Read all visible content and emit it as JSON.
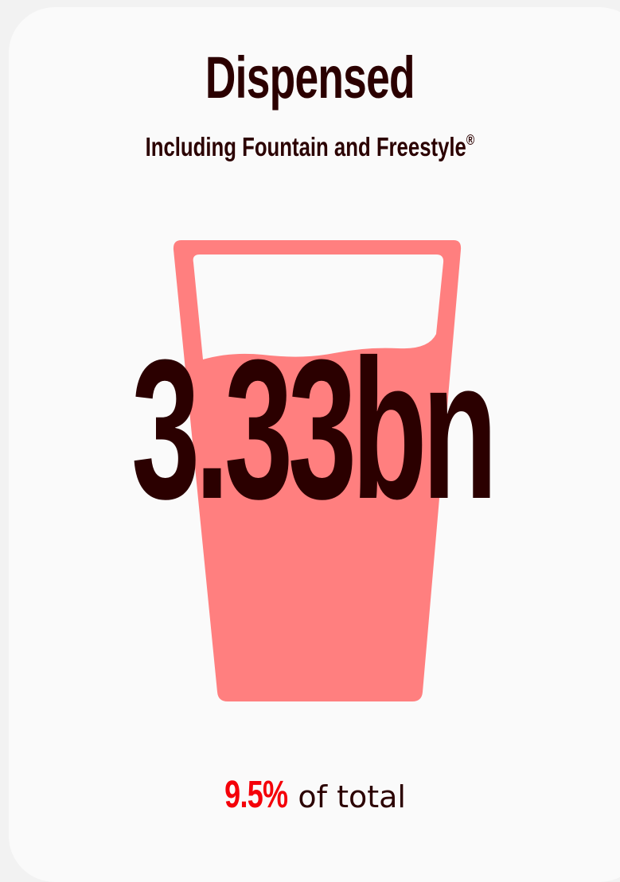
{
  "card": {
    "title": "Dispensed",
    "subtitle": "Including Fountain and Freestyle",
    "subtitle_mark": "®",
    "value": "3.33bn",
    "share_percent": "9.5%",
    "share_label": "of total"
  },
  "icons": {
    "glass": "drinking-glass-icon"
  },
  "colors": {
    "text_dark": "#2b0000",
    "glass_fill": "#ff7f7f",
    "accent_red": "#f40009",
    "card_bg": "#fafafa",
    "page_bg": "#f2f2f2"
  }
}
